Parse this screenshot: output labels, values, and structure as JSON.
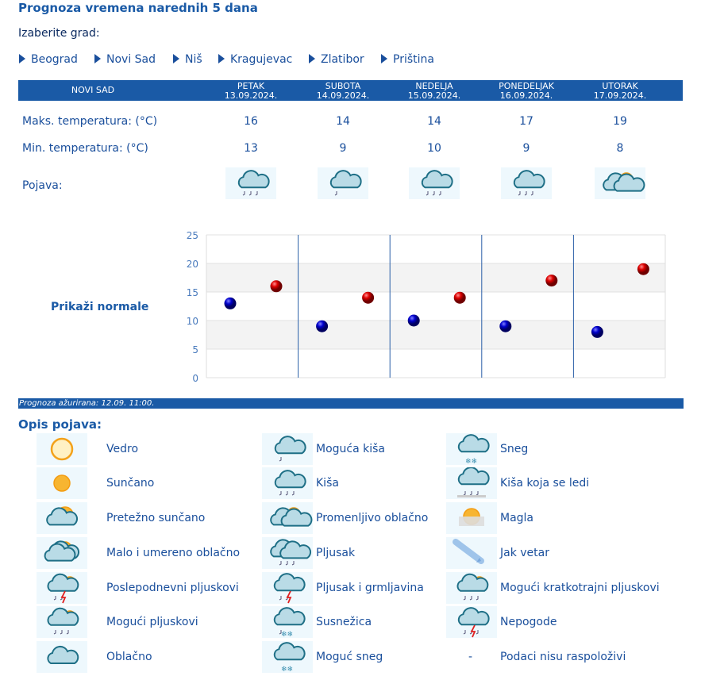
{
  "title": "Prognoza vremena narednih 5 dana",
  "choose_label": "Izaberite grad:",
  "cities": [
    "Beograd",
    "Novi Sad",
    "Niš",
    "Kragujevac",
    "Zlatibor",
    "Priština"
  ],
  "table": {
    "city": "NOVI SAD",
    "days": [
      {
        "name": "PETAK",
        "date": "13.09.2024.",
        "max": "16",
        "min": "13",
        "icon": "rain"
      },
      {
        "name": "SUBOTA",
        "date": "14.09.2024.",
        "max": "14",
        "min": "9",
        "icon": "possible-rain"
      },
      {
        "name": "NEDELJA",
        "date": "15.09.2024.",
        "max": "14",
        "min": "10",
        "icon": "rain"
      },
      {
        "name": "PONEDELJAK",
        "date": "16.09.2024.",
        "max": "17",
        "min": "9",
        "icon": "rain"
      },
      {
        "name": "UTORAK",
        "date": "17.09.2024.",
        "max": "19",
        "min": "8",
        "icon": "partly-cloudy"
      }
    ],
    "max_label": "Maks. temperatura: (°C)",
    "min_label": "Min. temperatura: (°C)",
    "phen_label": "Pojava:"
  },
  "normals_link": "Prikaži normale",
  "chart_data": {
    "type": "scatter",
    "ylim": [
      0,
      25
    ],
    "yticks": [
      "0",
      "5",
      "10",
      "15",
      "20",
      "25"
    ],
    "grid": true,
    "categories": [
      "13.09.2024.",
      "14.09.2024.",
      "15.09.2024.",
      "16.09.2024.",
      "17.09.2024."
    ],
    "series": [
      {
        "values": [
          13,
          9,
          10,
          9,
          8
        ],
        "color": "#0000cc"
      },
      {
        "values": [
          16,
          14,
          14,
          17,
          19
        ],
        "color": "#dd0000"
      }
    ]
  },
  "updated": "Prognoza ažurirana:  12.09. 11:00.",
  "legend_title": "Opis pojava:",
  "legend": [
    [
      {
        "icon": "clear",
        "label": "Vedro"
      },
      {
        "icon": "sunny",
        "label": "Sunčano"
      },
      {
        "icon": "mostly-sunny",
        "label": "Pretežno sunčano"
      },
      {
        "icon": "light-cloudy",
        "label": "Malo i umereno oblačno"
      },
      {
        "icon": "afternoon-showers",
        "label": "Poslepodnevni pljuskovi"
      },
      {
        "icon": "possible-showers",
        "label": "Mogući pljuskovi"
      },
      {
        "icon": "cloudy",
        "label": "Oblačno"
      }
    ],
    [
      {
        "icon": "possible-rain",
        "label": "Moguća kiša"
      },
      {
        "icon": "rain",
        "label": "Kiša"
      },
      {
        "icon": "partly-cloudy",
        "label": "Promenljivo oblačno"
      },
      {
        "icon": "shower",
        "label": "Pljusak"
      },
      {
        "icon": "thunder",
        "label": "Pljusak i grmljavina"
      },
      {
        "icon": "sleet",
        "label": "Susnežica"
      },
      {
        "icon": "possible-snow",
        "label": "Moguć sneg"
      }
    ],
    [
      {
        "icon": "snow",
        "label": "Sneg"
      },
      {
        "icon": "freezing-rain",
        "label": "Kiša koja se ledi"
      },
      {
        "icon": "fog",
        "label": "Magla"
      },
      {
        "icon": "wind",
        "label": "Jak vetar"
      },
      {
        "icon": "short-showers",
        "label": "Mogući kratkotrajni pljuskovi"
      },
      {
        "icon": "storm",
        "label": "Nepogode"
      },
      {
        "icon": "none",
        "label": "Podaci nisu raspoloživi",
        "symbol": "-"
      }
    ]
  ]
}
